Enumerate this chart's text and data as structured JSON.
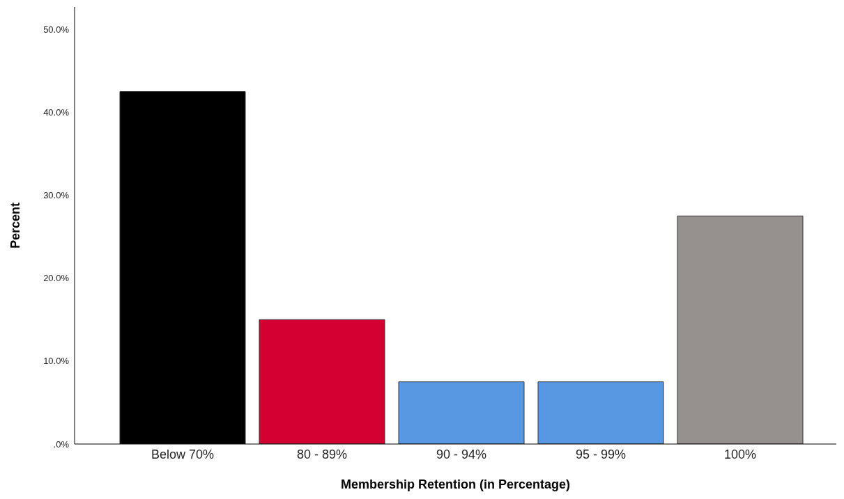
{
  "chart_data": {
    "type": "bar",
    "xlabel": "Membership Retention (in Percentage)",
    "ylabel": "Percent",
    "categories": [
      "Below 70%",
      "80 - 89%",
      "90 - 94%",
      "95 - 99%",
      "100%"
    ],
    "values": [
      42.5,
      15.0,
      7.5,
      7.5,
      27.5
    ],
    "colors": [
      "#000000",
      "#d50032",
      "#5898e3",
      "#5898e3",
      "#96918f"
    ],
    "ylim": [
      0,
      52.7
    ],
    "yticks": [
      {
        "value": 0,
        "label": ".0%"
      },
      {
        "value": 10,
        "label": "10.0%"
      },
      {
        "value": 20,
        "label": "20.0%"
      },
      {
        "value": 30,
        "label": "30.0%"
      },
      {
        "value": 40,
        "label": "40.0%"
      },
      {
        "value": 50,
        "label": "50.0%"
      }
    ],
    "grid": false,
    "legend": false
  }
}
